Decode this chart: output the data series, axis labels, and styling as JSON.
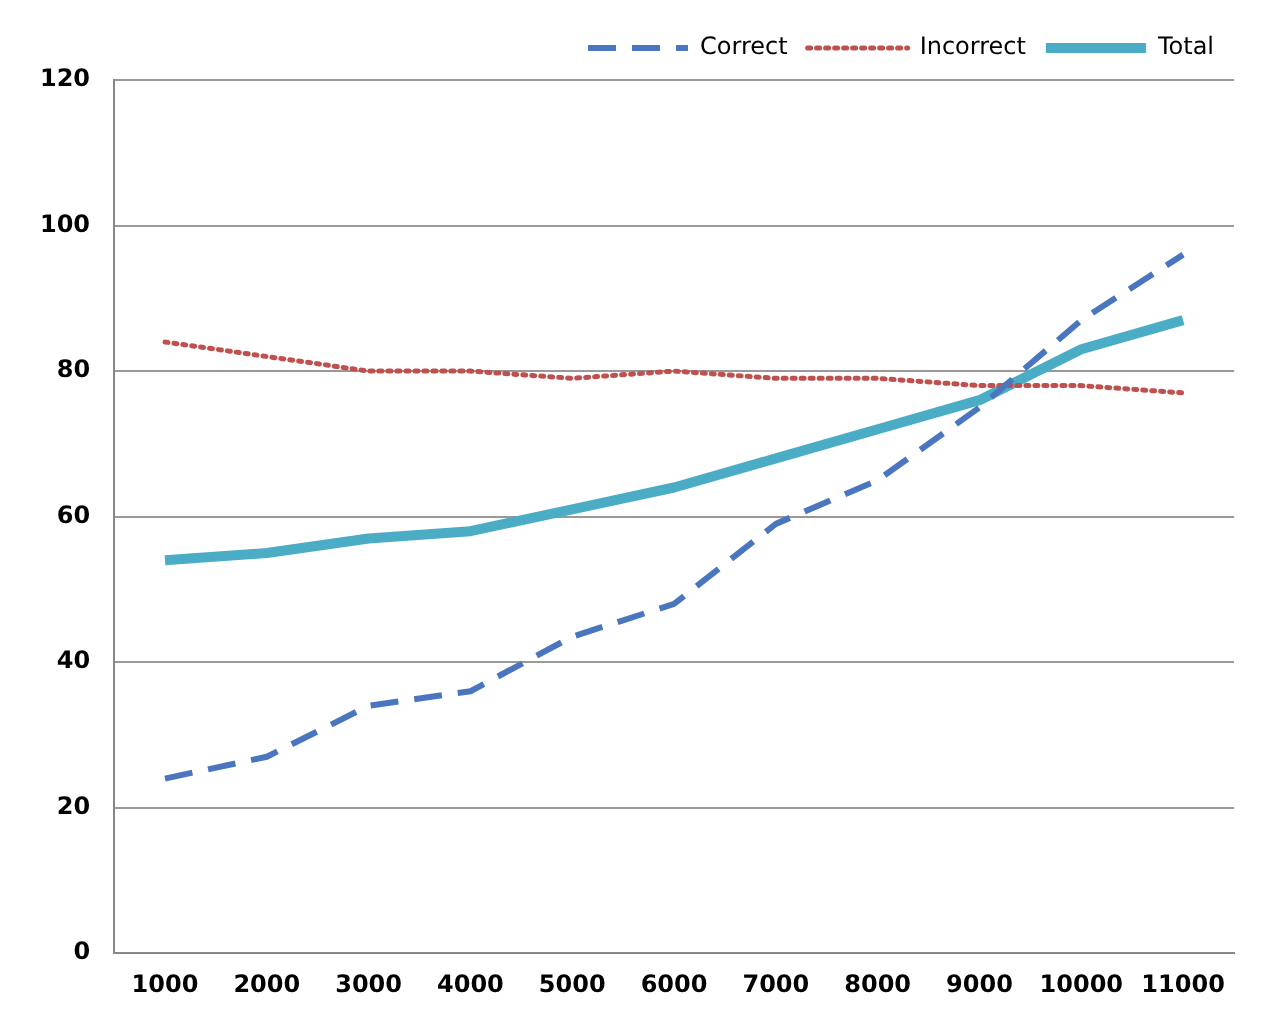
{
  "chart_data": {
    "type": "line",
    "categories": [
      "1000",
      "2000",
      "3000",
      "4000",
      "5000",
      "6000",
      "7000",
      "8000",
      "9000",
      "10000",
      "11000"
    ],
    "series": [
      {
        "name": "Correct",
        "color": "#4a76c0",
        "line_style": "dashed",
        "values": [
          24,
          27,
          34,
          36,
          43.5,
          48,
          59,
          65,
          75,
          87,
          96
        ]
      },
      {
        "name": "Incorrect",
        "color": "#c0504d",
        "line_style": "dotted",
        "values": [
          84,
          82,
          80,
          80,
          79,
          80,
          79,
          79,
          78,
          78,
          77
        ]
      },
      {
        "name": "Total",
        "color": "#4bacc6",
        "line_style": "solid",
        "values": [
          54,
          55,
          57,
          58,
          61,
          64,
          68,
          72,
          76,
          83,
          87
        ]
      }
    ],
    "ylim": [
      0,
      120
    ],
    "yticks": [
      0,
      20,
      40,
      60,
      80,
      100,
      120
    ],
    "grid": "y",
    "legend": "top right",
    "marker": "none"
  }
}
